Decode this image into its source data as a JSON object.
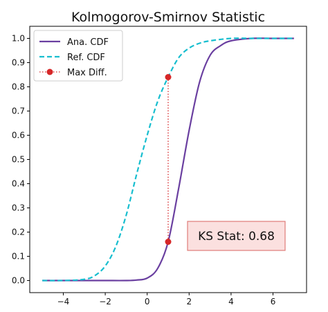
{
  "chart_data": {
    "type": "line",
    "title": "Kolmogorov-Smirnov Statistic",
    "xlabel": "",
    "ylabel": "",
    "xlim": [
      -5.6,
      7.6
    ],
    "ylim": [
      -0.05,
      1.05
    ],
    "xticks": [
      "−4",
      "−2",
      "0",
      "2",
      "4",
      "6"
    ],
    "xtick_values": [
      -4,
      -2,
      0,
      2,
      4,
      6
    ],
    "yticks": [
      "0.0",
      "0.1",
      "0.2",
      "0.3",
      "0.4",
      "0.5",
      "0.6",
      "0.7",
      "0.8",
      "0.9",
      "1.0"
    ],
    "ytick_values": [
      0,
      0.1,
      0.2,
      0.3,
      0.4,
      0.5,
      0.6,
      0.7,
      0.8,
      0.9,
      1.0
    ],
    "grid": false,
    "legend_position": "top-left",
    "series": [
      {
        "name": "Ana. CDF",
        "style": "solid",
        "color": "#6a3fa0",
        "x": [
          -5,
          -4,
          -3,
          -2,
          -1,
          -0.5,
          0,
          0.5,
          1,
          1.5,
          2,
          2.5,
          3,
          3.5,
          4,
          5,
          6,
          7
        ],
        "y": [
          0.0,
          0.0,
          0.0,
          0.0,
          0.0,
          0.002,
          0.01,
          0.05,
          0.16,
          0.38,
          0.62,
          0.82,
          0.93,
          0.97,
          0.99,
          1.0,
          1.0,
          1.0
        ]
      },
      {
        "name": "Ref. CDF",
        "style": "dashed",
        "color": "#17becf",
        "x": [
          -5,
          -4,
          -3,
          -2.5,
          -2,
          -1.5,
          -1,
          -0.5,
          0,
          0.5,
          1,
          1.5,
          2,
          2.5,
          3,
          4,
          5,
          6,
          7
        ],
        "y": [
          0.0,
          0.0,
          0.005,
          0.02,
          0.06,
          0.14,
          0.27,
          0.44,
          0.6,
          0.74,
          0.84,
          0.92,
          0.96,
          0.98,
          0.99,
          1.0,
          1.0,
          1.0,
          1.0
        ]
      }
    ],
    "max_diff": {
      "name": "Max Diff.",
      "color": "#d62728",
      "x": 1.0,
      "y_low": 0.16,
      "y_high": 0.84
    },
    "annotation": {
      "text": "KS Stat: 0.68",
      "box_fill": "#fbe0df",
      "box_edge": "#e07b78"
    }
  }
}
